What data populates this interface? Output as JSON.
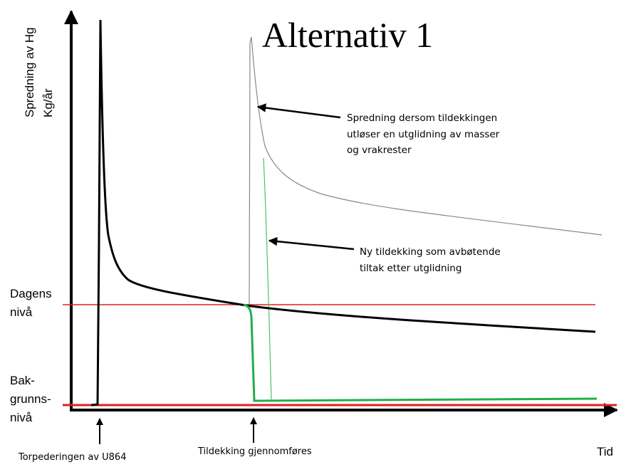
{
  "title": "Alternativ 1",
  "y_axis_label": [
    "Spredning av Hg",
    "Kg/år"
  ],
  "x_axis_label": "Tid",
  "levels": {
    "current": [
      "Dagens",
      "nivå"
    ],
    "background": [
      "Bak-",
      "grunns-",
      "nivå"
    ]
  },
  "annotations": [
    [
      "Spredning dersom tildekkingen",
      "utløser en utglidning av masser",
      "og vrakrester"
    ],
    [
      "Ny tildekking som avbøtende",
      "tiltak etter utglidning"
    ]
  ],
  "events": [
    "Torpederingen av U864",
    "Tildekking gjennomføres"
  ]
}
